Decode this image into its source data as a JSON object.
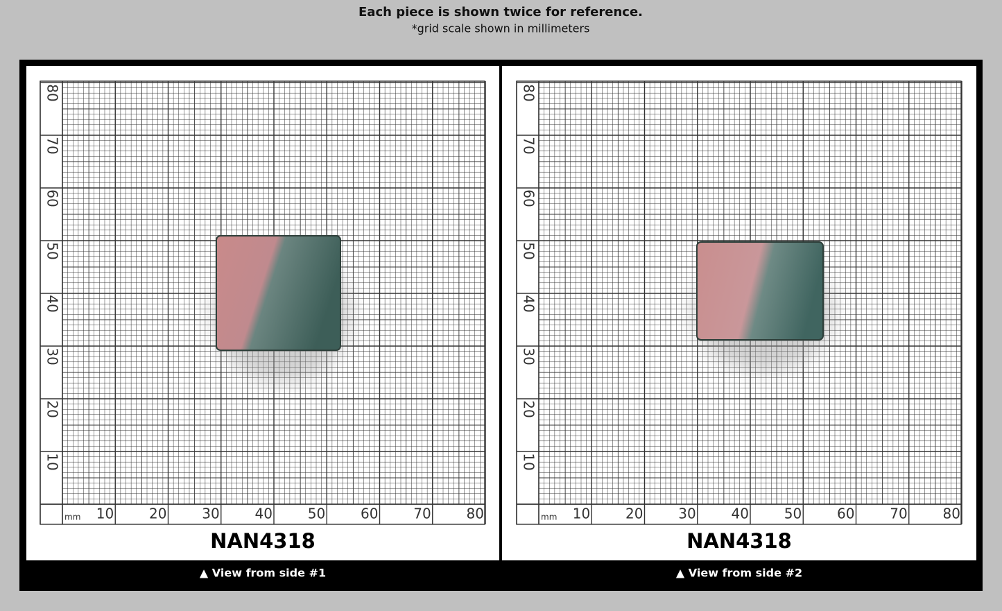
{
  "header": {
    "title": "Each piece is shown twice for reference.",
    "subtitle": "*grid scale shown in millimeters"
  },
  "panels": [
    {
      "label": "NAN4318",
      "caption": "▲ View from side #1",
      "unit": "mm",
      "x_labels": [
        10,
        20,
        30,
        40,
        50,
        60,
        70,
        80
      ],
      "y_labels": [
        10,
        20,
        30,
        40,
        50,
        60,
        70,
        80
      ]
    },
    {
      "label": "NAN4318",
      "caption": "▲ View from side #2",
      "unit": "mm",
      "x_labels": [
        10,
        20,
        30,
        40,
        50,
        60,
        70,
        80
      ],
      "y_labels": [
        10,
        20,
        30,
        40,
        50,
        60,
        70,
        80
      ]
    }
  ]
}
